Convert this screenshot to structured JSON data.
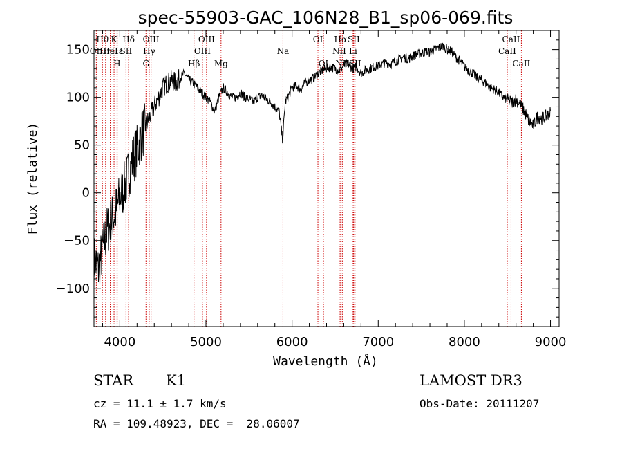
{
  "chart_data": {
    "type": "line",
    "title": "spec-55903-GAC_106N28_B1_sp06-069.fits",
    "xlabel": "Wavelength (Å)",
    "ylabel": "Flux (relative)",
    "xlim": [
      3700,
      9100
    ],
    "ylim": [
      -140,
      170
    ],
    "x_ticks": [
      4000,
      5000,
      6000,
      7000,
      8000,
      9000
    ],
    "y_ticks": [
      -100,
      -50,
      0,
      50,
      100,
      150
    ],
    "y_tick_labels": [
      "−100",
      "−50",
      "0",
      "50",
      "100",
      "150"
    ],
    "line_color": "#000000",
    "marker_color": "#cc0000",
    "series": [
      {
        "name": "flux",
        "x": [
          3700,
          3750,
          3800,
          3850,
          3900,
          3950,
          4000,
          4050,
          4100,
          4150,
          4200,
          4250,
          4300,
          4350,
          4400,
          4450,
          4500,
          4550,
          4600,
          4650,
          4700,
          4750,
          4800,
          4850,
          4900,
          4950,
          5000,
          5050,
          5100,
          5150,
          5200,
          5250,
          5300,
          5350,
          5400,
          5450,
          5500,
          5550,
          5600,
          5650,
          5700,
          5750,
          5800,
          5850,
          5890,
          5920,
          5950,
          6000,
          6050,
          6100,
          6150,
          6200,
          6250,
          6300,
          6350,
          6400,
          6450,
          6500,
          6550,
          6600,
          6650,
          6700,
          6750,
          6800,
          6850,
          6900,
          6950,
          7000,
          7050,
          7100,
          7150,
          7200,
          7250,
          7300,
          7350,
          7400,
          7450,
          7500,
          7550,
          7600,
          7650,
          7700,
          7750,
          7800,
          7850,
          7900,
          7950,
          8000,
          8050,
          8100,
          8150,
          8200,
          8250,
          8300,
          8350,
          8400,
          8450,
          8500,
          8550,
          8600,
          8650,
          8700,
          8750,
          8800,
          8850,
          8900,
          8950,
          9000
        ],
        "y": [
          -70,
          -80,
          -60,
          -40,
          -30,
          -20,
          -5,
          5,
          20,
          35,
          45,
          60,
          70,
          80,
          90,
          100,
          110,
          115,
          118,
          115,
          120,
          125,
          118,
          115,
          110,
          105,
          100,
          95,
          85,
          100,
          110,
          105,
          100,
          100,
          105,
          100,
          98,
          95,
          100,
          102,
          98,
          95,
          90,
          85,
          55,
          95,
          100,
          110,
          112,
          108,
          115,
          118,
          120,
          125,
          128,
          130,
          132,
          130,
          128,
          133,
          135,
          130,
          132,
          125,
          128,
          130,
          132,
          133,
          135,
          136,
          135,
          138,
          140,
          142,
          140,
          143,
          145,
          146,
          148,
          147,
          150,
          152,
          154,
          150,
          148,
          142,
          138,
          132,
          128,
          125,
          120,
          118,
          115,
          110,
          108,
          105,
          100,
          97,
          95,
          98,
          92,
          85,
          75,
          70,
          80,
          78,
          80,
          84
        ]
      }
    ],
    "line_markers": [
      {
        "label": "Hθ",
        "wavelength": 3798,
        "row": 1
      },
      {
        "label": "OII",
        "wavelength": 3727,
        "row": 2
      },
      {
        "label": "Hη",
        "wavelength": 3835,
        "row": 2
      },
      {
        "label": "HeI",
        "wavelength": 3889,
        "row": 2
      },
      {
        "label": "Hε",
        "wavelength": 3970,
        "row": 2
      },
      {
        "label": "K",
        "wavelength": 3933,
        "row": 1
      },
      {
        "label": "H",
        "wavelength": 3968,
        "row": 3
      },
      {
        "label": "SII",
        "wavelength": 4072,
        "row": 2
      },
      {
        "label": "Hδ",
        "wavelength": 4102,
        "row": 1
      },
      {
        "label": "OIII",
        "wavelength": 4363,
        "row": 1
      },
      {
        "label": "Hγ",
        "wavelength": 4341,
        "row": 2
      },
      {
        "label": "G",
        "wavelength": 4304,
        "row": 3
      },
      {
        "label": "Hβ",
        "wavelength": 4861,
        "row": 3
      },
      {
        "label": "OIII",
        "wavelength": 5007,
        "row": 1
      },
      {
        "label": "OIII",
        "wavelength": 4959,
        "row": 2
      },
      {
        "label": "Mg",
        "wavelength": 5175,
        "row": 3
      },
      {
        "label": "Na",
        "wavelength": 5894,
        "row": 2
      },
      {
        "label": "OI",
        "wavelength": 6300,
        "row": 1
      },
      {
        "label": "OI",
        "wavelength": 6364,
        "row": 3
      },
      {
        "label": "Hα",
        "wavelength": 6563,
        "row": 1
      },
      {
        "label": "NII",
        "wavelength": 6548,
        "row": 2
      },
      {
        "label": "NII",
        "wavelength": 6583,
        "row": 3
      },
      {
        "label": "SII",
        "wavelength": 6716,
        "row": 1
      },
      {
        "label": "Li",
        "wavelength": 6708,
        "row": 2
      },
      {
        "label": "SII",
        "wavelength": 6731,
        "row": 3
      },
      {
        "label": "CaII",
        "wavelength": 8542,
        "row": 1
      },
      {
        "label": "CaII",
        "wavelength": 8498,
        "row": 2
      },
      {
        "label": "CaII",
        "wavelength": 8662,
        "row": 3
      }
    ]
  },
  "info": {
    "obj_type": "STAR",
    "subclass": "K1",
    "cz": "cz = 11.1 ± 1.7 km/s",
    "radec": "RA = 109.48923, DEC =  28.06007",
    "survey": "LAMOST DR3",
    "obs_date": "Obs-Date: 20111207"
  }
}
